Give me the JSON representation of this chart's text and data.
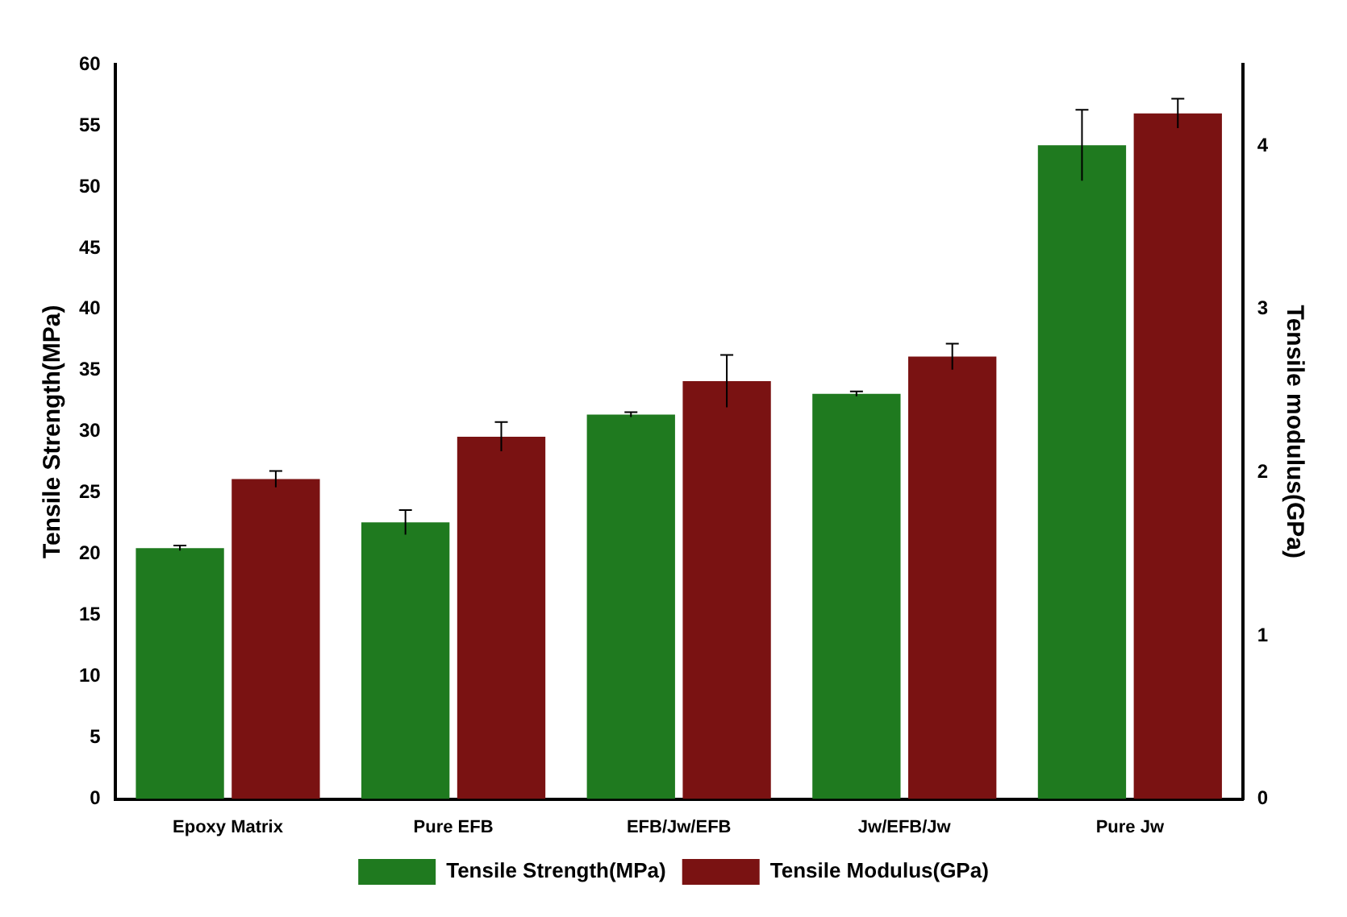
{
  "chart_data": {
    "type": "bar",
    "xlabel": null,
    "ylabel": "Tensile Strength(MPa)",
    "y2label": "Tensile modulus(GPa)",
    "categories": [
      "Epoxy Matrix",
      "Pure EFB",
      "EFB/Jw/EFB",
      "Jw/EFB/Jw",
      "Pure Jw"
    ],
    "series": [
      {
        "name": "Tensile Strength(MPa)",
        "color": "#1f7a1f",
        "values": [
          20.5,
          22.6,
          31.4,
          33.1,
          53.4
        ],
        "errors": [
          0.2,
          1,
          0.2,
          0.2,
          2.9
        ]
      },
      {
        "name": "Tensile Modulus(GPa)",
        "color": "#7a1212",
        "axis": "y2",
        "values": [
          1.96,
          2.22,
          2.56,
          2.71,
          4.2
        ],
        "errors": [
          0.05,
          0.09,
          0.16,
          0.08,
          0.09
        ]
      }
    ],
    "ylim": [
      0,
      60
    ],
    "yticks": [
      0,
      5,
      10,
      15,
      20,
      25,
      30,
      35,
      40,
      45,
      50,
      55,
      60
    ],
    "y2lim": [
      0,
      4.5
    ],
    "y2ticks": [
      0,
      1,
      2,
      3,
      4
    ],
    "grid": false,
    "legend": "bottom"
  }
}
